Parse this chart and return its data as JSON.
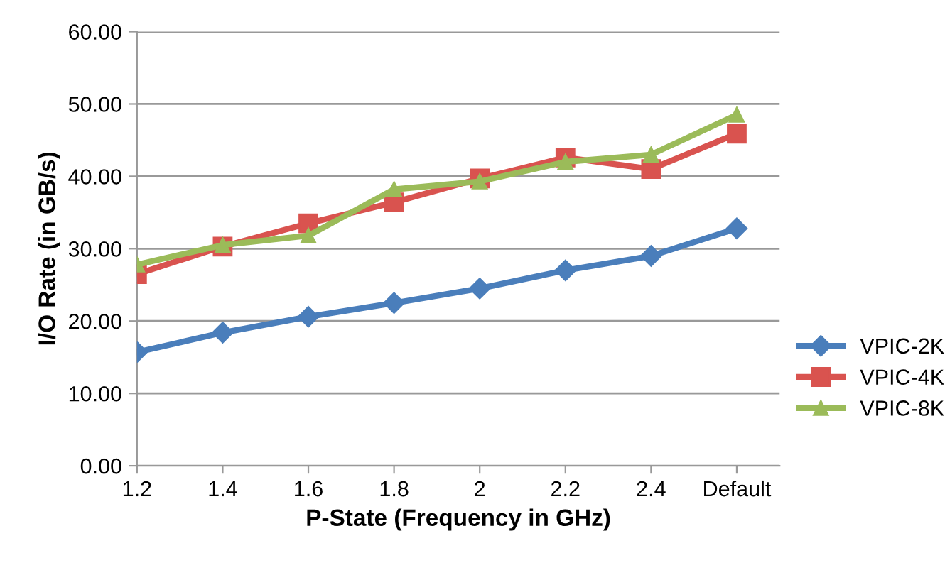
{
  "chart_data": {
    "type": "line",
    "xlabel": "P-State (Frequency in GHz)",
    "ylabel": "I/O Rate (in GB/s)",
    "categories": [
      "1.2",
      "1.4",
      "1.6",
      "1.8",
      "2",
      "2.2",
      "2.4",
      "Default"
    ],
    "series": [
      {
        "name": "VPIC-2K",
        "color": "#4a7ebb",
        "marker": "diamond",
        "values": [
          15.7,
          18.4,
          20.6,
          22.5,
          24.5,
          27.0,
          29.0,
          32.8
        ]
      },
      {
        "name": "VPIC-4K",
        "color": "#d9534f",
        "marker": "square",
        "values": [
          26.5,
          30.3,
          33.5,
          36.4,
          39.7,
          42.6,
          41.0,
          45.9
        ]
      },
      {
        "name": "VPIC-8K",
        "color": "#9bbb59",
        "marker": "triangle",
        "values": [
          27.8,
          30.5,
          31.8,
          38.2,
          39.3,
          42.0,
          43.0,
          48.5
        ]
      }
    ],
    "ylim": [
      0,
      60
    ],
    "yticks": [
      {
        "value": 0,
        "label": "0.00"
      },
      {
        "value": 10,
        "label": "10.00"
      },
      {
        "value": 20,
        "label": "20.00"
      },
      {
        "value": 30,
        "label": "30.00"
      },
      {
        "value": 40,
        "label": "40.00"
      },
      {
        "value": 50,
        "label": "50.00"
      },
      {
        "value": 60,
        "label": "60.00"
      }
    ],
    "grid": "y",
    "legend": "right",
    "line_style": "solid"
  }
}
